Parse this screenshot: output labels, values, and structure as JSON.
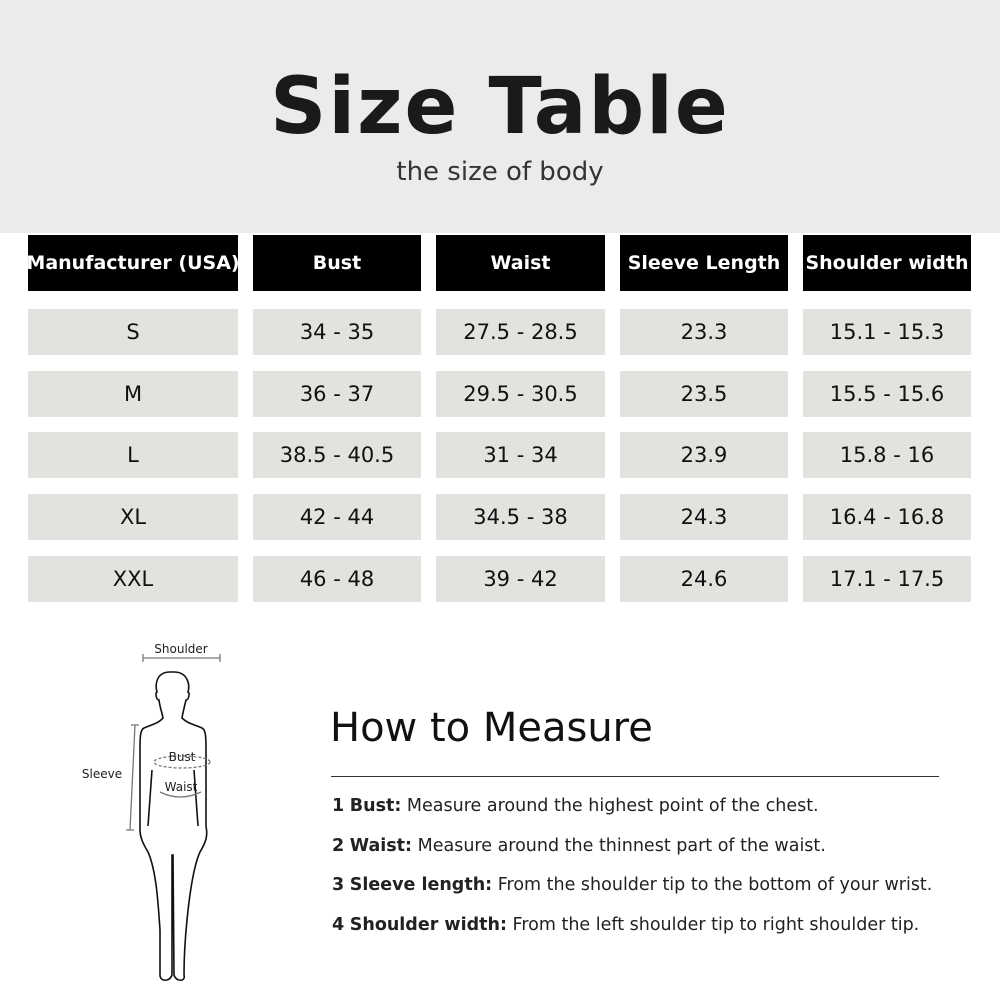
{
  "title": "Size Table",
  "subtitle": "the size of body",
  "table": {
    "headers": [
      "Manufacturer (USA)",
      "Bust",
      "Waist",
      "Sleeve Length",
      "Shoulder width"
    ],
    "rows": [
      [
        "S",
        "34 - 35",
        "27.5 - 28.5",
        "23.3",
        "15.1 - 15.3"
      ],
      [
        "M",
        "36 - 37",
        "29.5 - 30.5",
        "23.5",
        "15.5 - 15.6"
      ],
      [
        "L",
        "38.5 - 40.5",
        "31 - 34",
        "23.9",
        "15.8 - 16"
      ],
      [
        "XL",
        "42 - 44",
        "34.5 - 38",
        "24.3",
        "16.4 - 16.8"
      ],
      [
        "XXL",
        "46 - 48",
        "39 - 42",
        "24.6",
        "17.1 - 17.5"
      ]
    ]
  },
  "figure": {
    "shoulder": "Shoulder",
    "sleeve": "Sleeve",
    "bust": "Bust",
    "waist": "Waist"
  },
  "howto": {
    "title": "How to Measure",
    "items": [
      {
        "num": "1",
        "term": "Bust:",
        "text": "Measure around the highest point of the chest."
      },
      {
        "num": "2",
        "term": "Waist:",
        "text": "Measure around the thinnest part of the waist."
      },
      {
        "num": "3",
        "term": "Sleeve length:",
        "text": "From the shoulder tip to the bottom of your wrist."
      },
      {
        "num": "4",
        "term": "Shoulder width:",
        "text": "From the left shoulder tip to right shoulder tip."
      }
    ]
  },
  "colors": {
    "header_band": "#ebebeb",
    "header_cell": "#000000",
    "body_cell": "#e4e2de"
  }
}
